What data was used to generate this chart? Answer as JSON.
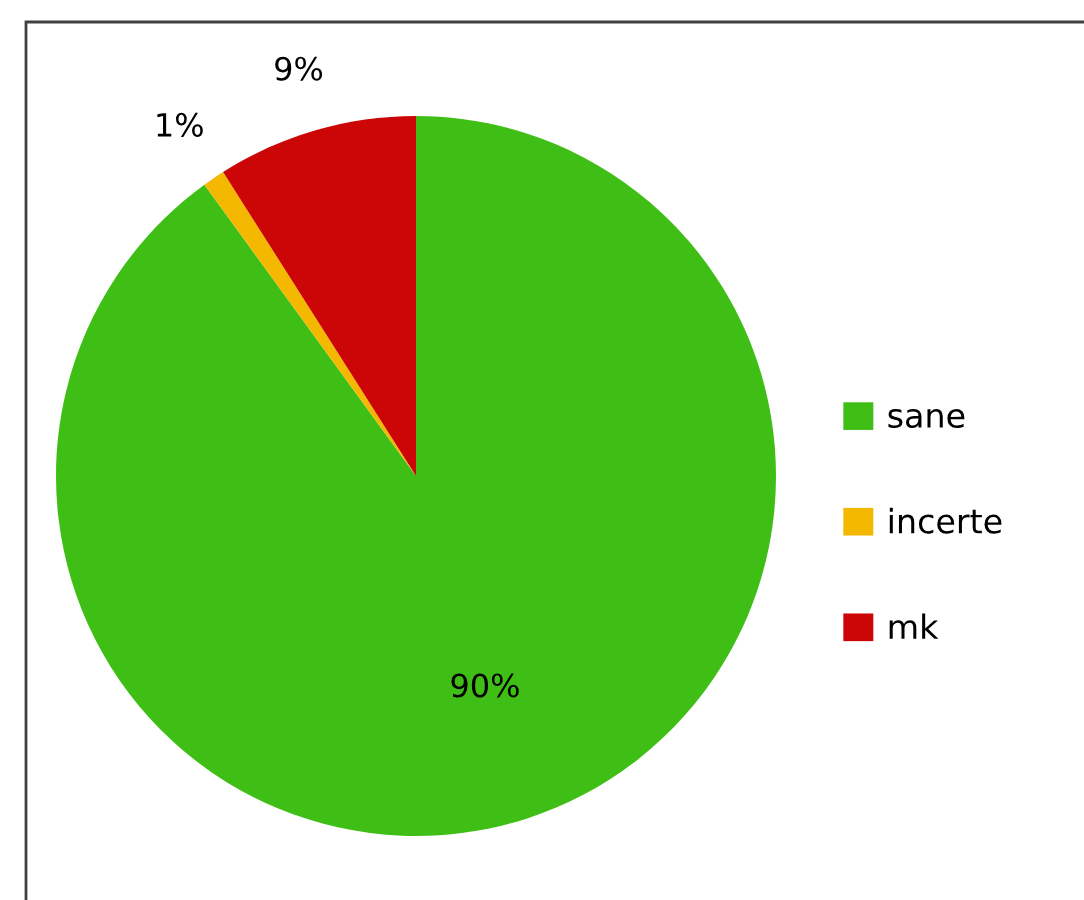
{
  "chart_data": {
    "type": "pie",
    "categories": [
      "sane",
      "incerte",
      "mk"
    ],
    "values": [
      90,
      1,
      9
    ],
    "colors": [
      "#3fbf16",
      "#f5b800",
      "#cc0606"
    ],
    "value_labels": [
      "90%",
      "1%",
      "9%"
    ],
    "legend": "right"
  }
}
